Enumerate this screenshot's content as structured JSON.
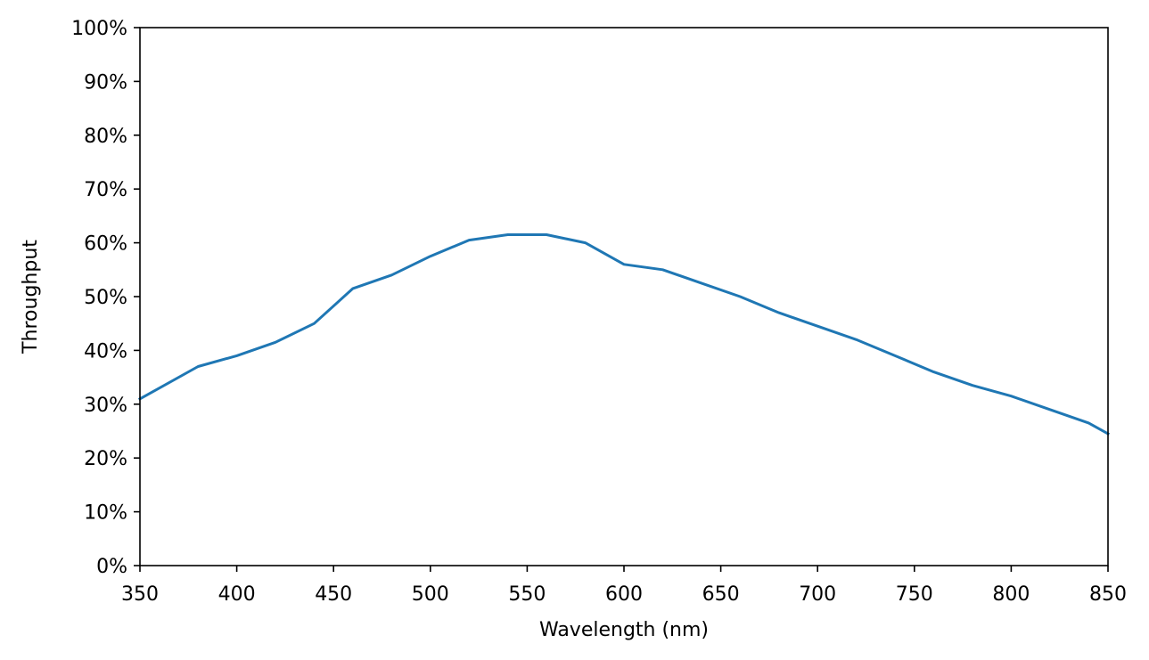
{
  "chart_data": {
    "type": "line",
    "title": "",
    "xlabel": "Wavelength (nm)",
    "ylabel": "Throughput",
    "xlim": [
      350,
      850
    ],
    "ylim": [
      0,
      1
    ],
    "x_ticks": [
      350,
      400,
      450,
      500,
      550,
      600,
      650,
      700,
      750,
      800,
      850
    ],
    "x_tick_labels": [
      "350",
      "400",
      "450",
      "500",
      "550",
      "600",
      "650",
      "700",
      "750",
      "800",
      "850"
    ],
    "y_ticks": [
      0,
      0.1,
      0.2,
      0.3,
      0.4,
      0.5,
      0.6,
      0.7,
      0.8,
      0.9,
      1.0
    ],
    "y_tick_labels": [
      "0%",
      "10%",
      "20%",
      "30%",
      "40%",
      "50%",
      "60%",
      "70%",
      "80%",
      "90%",
      "100%"
    ],
    "grid": false,
    "series": [
      {
        "color": "#1f77b4",
        "x": [
          350,
          380,
          400,
          420,
          440,
          460,
          480,
          500,
          520,
          540,
          560,
          580,
          600,
          620,
          640,
          660,
          680,
          700,
          720,
          740,
          760,
          780,
          800,
          820,
          840,
          850
        ],
        "y": [
          0.31,
          0.37,
          0.39,
          0.415,
          0.45,
          0.515,
          0.54,
          0.575,
          0.605,
          0.615,
          0.615,
          0.6,
          0.56,
          0.55,
          0.525,
          0.5,
          0.47,
          0.445,
          0.42,
          0.39,
          0.36,
          0.335,
          0.315,
          0.29,
          0.265,
          0.245
        ]
      }
    ]
  }
}
